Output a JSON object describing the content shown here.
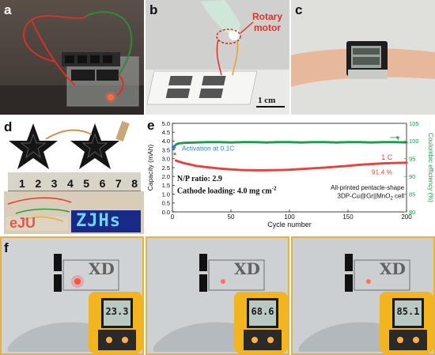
{
  "panels": {
    "a": {
      "label": "a"
    },
    "b": {
      "label": "b",
      "annotation": "Rotary motor",
      "scale_bar": "1 cm"
    },
    "c": {
      "label": "c"
    },
    "d": {
      "label": "d",
      "ruler_numbers": [
        "1",
        "2",
        "3",
        "4",
        "5",
        "6",
        "7",
        "8"
      ],
      "led_text": "ZJHs"
    },
    "e": {
      "label": "e"
    },
    "f": {
      "label": "f",
      "thermometer_readings": [
        "23.3",
        "68.6",
        "85.1"
      ]
    }
  },
  "chart_data": {
    "type": "scatter",
    "xlabel": "Cycle number",
    "ylabel": "Capacity (mAh)",
    "y2label": "Coulombic efficiency (%)",
    "xlim": [
      0,
      200
    ],
    "ylim": [
      0.0,
      5.0
    ],
    "y2lim": [
      80,
      105
    ],
    "xticks": [
      "0",
      "50",
      "100",
      "150",
      "200"
    ],
    "yticks": [
      "0.0",
      "0.5",
      "1.0",
      "1.5",
      "2.0",
      "2.5",
      "3.0",
      "3.5",
      "4.0",
      "4.5",
      "5.0"
    ],
    "y2ticks": [
      "80",
      "85",
      "90",
      "95",
      "100",
      "105"
    ],
    "series": [
      {
        "axis": "left",
        "color": "#e8403a",
        "x": [
          1,
          3,
          5,
          10,
          15,
          20,
          30,
          40,
          50,
          60,
          70,
          80,
          90,
          100,
          110,
          120,
          130,
          140,
          150,
          160,
          170,
          180,
          190,
          200
        ],
        "y": [
          3.65,
          2.9,
          2.85,
          2.75,
          2.68,
          2.6,
          2.52,
          2.45,
          2.4,
          2.36,
          2.35,
          2.35,
          2.36,
          2.38,
          2.42,
          2.46,
          2.5,
          2.55,
          2.6,
          2.66,
          2.7,
          2.74,
          2.76,
          2.78
        ]
      },
      {
        "axis": "right",
        "color": "#1e9a4c",
        "x": [
          1,
          3,
          5,
          10,
          20,
          30,
          40,
          50,
          60,
          70,
          80,
          90,
          100,
          110,
          120,
          130,
          140,
          150,
          160,
          170,
          180,
          190,
          200
        ],
        "y": [
          98.2,
          99.0,
          99.3,
          99.5,
          99.6,
          99.7,
          99.7,
          99.6,
          99.7,
          99.7,
          99.6,
          99.7,
          99.7,
          99.6,
          99.7,
          99.7,
          99.6,
          99.7,
          99.7,
          99.6,
          99.7,
          99.7,
          99.6
        ]
      }
    ],
    "annotations": {
      "activation": "Activation at 0.1C",
      "rate": "1 C",
      "retention": "91.4 %",
      "np_ratio": "N/P ratio: 2.9",
      "cathode_loading": "Cathode loading: 4.0 mg cm",
      "cathode_loading_sup": "-2",
      "cell_line1": "All-printed pentacle-shape",
      "cell_line2": "3DP-Cu@Gr||MnO",
      "cell_sub": "2",
      "cell_tail": " cell"
    },
    "colors": {
      "capacity": "#e8403a",
      "efficiency": "#1e9a4c",
      "activation_point": "#2b7fd0"
    }
  }
}
